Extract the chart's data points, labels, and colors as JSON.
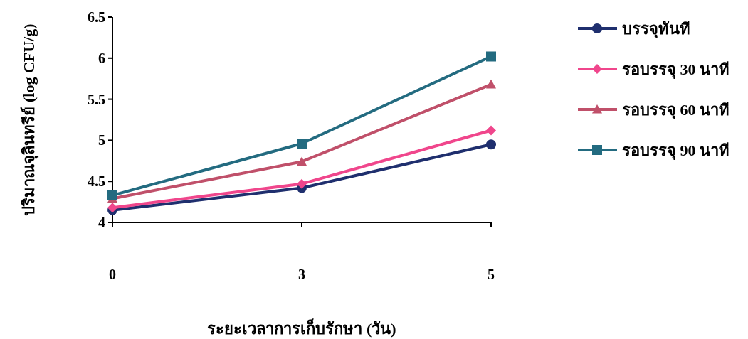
{
  "chart_data": {
    "type": "line",
    "xlabel": "ระยะเวลาการเก็บรักษา (วัน)",
    "ylabel": "ปริมาณจุลินทรีย์ (log CFU/g)",
    "categories": [
      "0",
      "3",
      "5"
    ],
    "ylim": [
      4,
      6.5
    ],
    "yticks": [
      4,
      4.5,
      5,
      5.5,
      6,
      6.5
    ],
    "grid": false,
    "legend": "right",
    "line_style": "solid",
    "series": [
      {
        "name": "บรรจุทันที",
        "color": "#1f2f6e",
        "marker": "circle",
        "values": [
          4.15,
          4.42,
          4.95
        ]
      },
      {
        "name": "รอบรรจุ 30 นาที",
        "color": "#f0468c",
        "marker": "diamond",
        "values": [
          4.18,
          4.47,
          5.12
        ]
      },
      {
        "name": "รอบรรจุ 60 นาที",
        "color": "#c0506a",
        "marker": "triangle",
        "values": [
          4.29,
          4.74,
          5.68
        ]
      },
      {
        "name": "รอบรรจุ 90 นาที",
        "color": "#236b80",
        "marker": "square",
        "values": [
          4.33,
          4.96,
          6.02
        ]
      }
    ]
  }
}
